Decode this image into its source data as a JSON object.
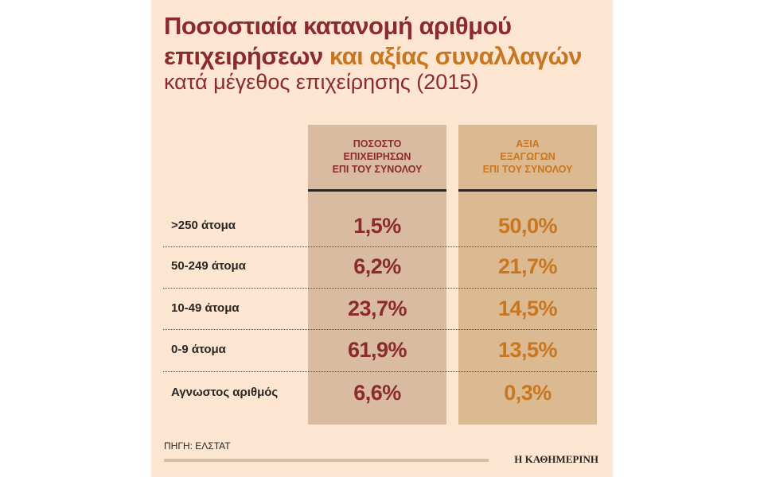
{
  "title": {
    "part1": "Ποσοστιαία κατανομή αριθμού",
    "part2": "επιχειρήσεων",
    "part3": "και αξίας συναλλαγών",
    "subtitle": "κατά μέγεθος επιχείρησης (2015)"
  },
  "colors": {
    "dark_red": "#8b2a2f",
    "orange": "#c8761f",
    "background": "#fde6d1"
  },
  "chart_data": {
    "type": "table",
    "columns": [
      {
        "line1": "ΠΟΣΟΣΤΟ",
        "line2": "ΕΠΙΧΕΙΡΗΣΩΝ",
        "line3": "ΕΠΙ ΤΟΥ ΣΥΝΟΛΟΥ"
      },
      {
        "line1": "ΑΞΙΑ",
        "line2": "ΕΞΑΓΩΓΩΝ",
        "line3": "ΕΠΙ ΤΟΥ ΣΥΝΟΛΟΥ"
      }
    ],
    "rows": [
      {
        "label": ">250 άτομα",
        "v1": "1,5%",
        "v2": "50,0%"
      },
      {
        "label": "50-249 άτομα",
        "v1": "6,2%",
        "v2": "21,7%"
      },
      {
        "label": "10-49 άτομα",
        "v1": "23,7%",
        "v2": "14,5%"
      },
      {
        "label": "0-9 άτομα",
        "v1": "61,9%",
        "v2": "13,5%"
      },
      {
        "label": "Αγνωστος αριθμός",
        "v1": "6,6%",
        "v2": "0,3%"
      }
    ]
  },
  "footer": {
    "source": "ΠΗΓΗ: ΕΛΣΤΑΤ",
    "brand": "Η ΚΑΘΗΜΕΡΙΝΗ"
  }
}
